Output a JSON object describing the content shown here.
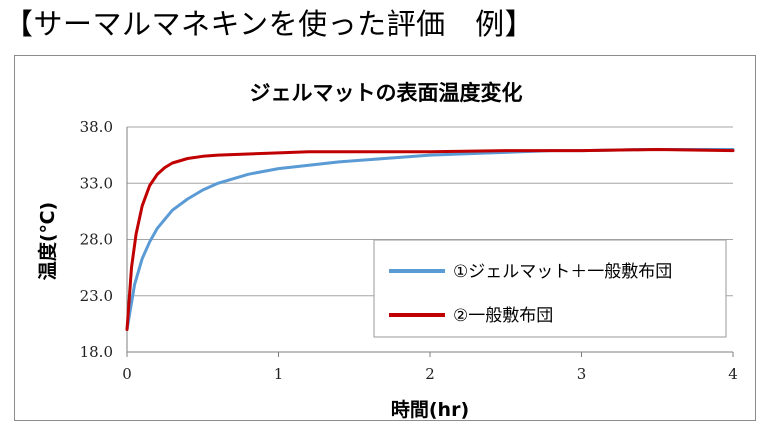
{
  "page_heading": "【サーマルマネキンを使った評価　例】",
  "chart_data": {
    "type": "line",
    "title": "ジェルマットの表面温度変化",
    "xlabel": "時間(hr)",
    "ylabel": "温度(℃)",
    "xlim": [
      0,
      4
    ],
    "ylim": [
      18.0,
      38.0
    ],
    "x_ticks": [
      0,
      1,
      2,
      3,
      4
    ],
    "x_tick_labels": [
      "0",
      "1",
      "2",
      "3",
      "4"
    ],
    "y_ticks": [
      18.0,
      23.0,
      28.0,
      33.0,
      38.0
    ],
    "y_tick_labels": [
      "18.0",
      "23.0",
      "28.0",
      "33.0",
      "38.0"
    ],
    "grid": "horizontal",
    "legend_position": "bottom-right",
    "series": [
      {
        "name": "①ジェルマット＋一般敷布団",
        "color": "#5b9bd5",
        "x": [
          0,
          0.05,
          0.1,
          0.15,
          0.2,
          0.3,
          0.4,
          0.5,
          0.6,
          0.8,
          1.0,
          1.2,
          1.4,
          1.6,
          1.8,
          2.0,
          2.2,
          2.4,
          2.6,
          2.8,
          3.0,
          3.2,
          3.4,
          3.6,
          3.8,
          4.0
        ],
        "y": [
          20.0,
          24.0,
          26.3,
          27.8,
          29.0,
          30.6,
          31.6,
          32.4,
          33.0,
          33.8,
          34.3,
          34.6,
          34.9,
          35.1,
          35.3,
          35.5,
          35.6,
          35.7,
          35.8,
          35.9,
          35.9,
          35.95,
          36.0,
          36.0,
          36.0,
          36.0
        ]
      },
      {
        "name": "②一般敷布団",
        "color": "#c00000",
        "x": [
          0,
          0.03,
          0.06,
          0.1,
          0.15,
          0.2,
          0.25,
          0.3,
          0.4,
          0.5,
          0.6,
          0.8,
          1.0,
          1.2,
          1.5,
          2.0,
          2.5,
          3.0,
          3.5,
          4.0
        ],
        "y": [
          20.0,
          25.5,
          28.5,
          31.0,
          32.8,
          33.8,
          34.4,
          34.8,
          35.2,
          35.4,
          35.5,
          35.6,
          35.7,
          35.8,
          35.8,
          35.8,
          35.9,
          35.9,
          36.0,
          35.9
        ]
      }
    ]
  }
}
